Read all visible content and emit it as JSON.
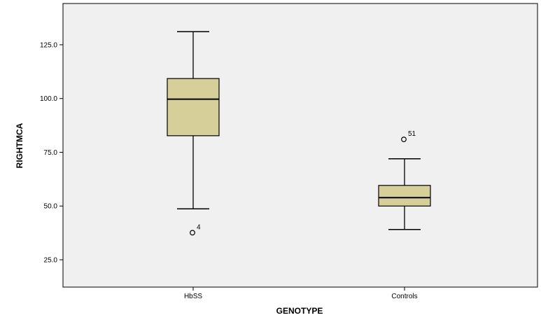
{
  "chart_data": {
    "type": "boxplot",
    "xlabel": "GENOTYPE",
    "ylabel": "RIGHTMCA",
    "ylim": [
      12.3,
      144.2
    ],
    "yticks": [
      25.0,
      50.0,
      75.0,
      100.0,
      125.0
    ],
    "ytick_labels": [
      "25.0",
      "50.0",
      "75.0",
      "100.0",
      "125.0"
    ],
    "grid": false,
    "box_color": "#d6cf9a",
    "plot_bg": "#f0f0f0",
    "categories": [
      "HbSS",
      "Controls"
    ],
    "boxes": [
      {
        "category": "HbSS",
        "whisker_low": 48.7,
        "q1": 82.7,
        "median": 99.7,
        "q3": 109.3,
        "whisker_high": 131.1,
        "outliers": [
          {
            "value": 37.6,
            "label": "4"
          }
        ]
      },
      {
        "category": "Controls",
        "whisker_low": 39.1,
        "q1": 50.0,
        "median": 53.9,
        "q3": 59.6,
        "whisker_high": 72.0,
        "outliers": [
          {
            "value": 81.0,
            "label": "51"
          }
        ]
      }
    ]
  }
}
